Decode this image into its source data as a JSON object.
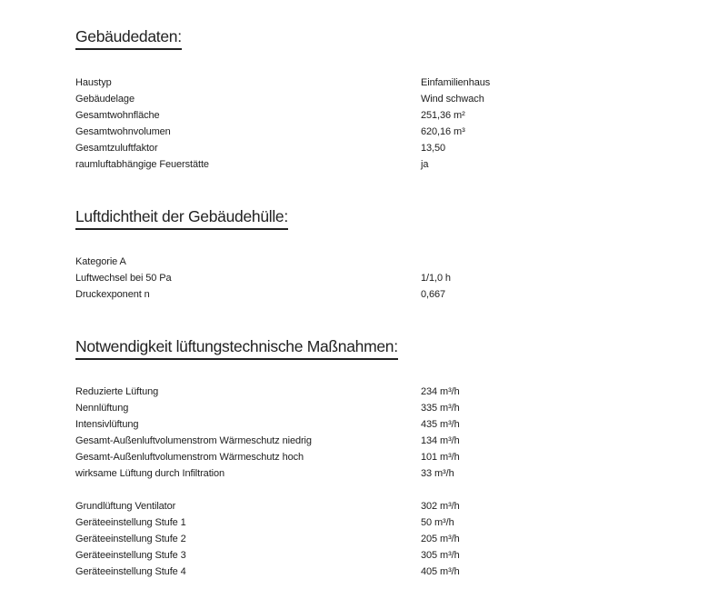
{
  "sections": [
    {
      "title": "Gebäudedaten:",
      "rows": [
        {
          "label": "Haustyp",
          "value": "Einfamilienhaus"
        },
        {
          "label": "Gebäudelage",
          "value": "Wind schwach"
        },
        {
          "label": "Gesamtwohnfläche",
          "value": "251,36 m²"
        },
        {
          "label": "Gesamtwohnvolumen",
          "value": "620,16 m³"
        },
        {
          "label": "Gesamtzuluftfaktor",
          "value": "13,50"
        },
        {
          "label": "raumluftabhängige Feuerstätte",
          "value": "ja"
        }
      ]
    },
    {
      "title": "Luftdichtheit der Gebäudehülle:",
      "rows": [
        {
          "label": "Kategorie A",
          "value": ""
        },
        {
          "label": "Luftwechsel bei 50 Pa",
          "value": "1/1,0 h"
        },
        {
          "label": "Druckexponent n",
          "value": "0,667"
        }
      ]
    },
    {
      "title": "Notwendigkeit lüftungstechnische Maßnahmen:",
      "rows": [
        {
          "label": "Reduzierte Lüftung",
          "value": "234 m³/h"
        },
        {
          "label": "Nennlüftung",
          "value": "335 m³/h"
        },
        {
          "label": "Intensivlüftung",
          "value": "435 m³/h"
        },
        {
          "label": "Gesamt-Außenluftvolumenstrom Wärmeschutz niedrig",
          "value": "134 m³/h"
        },
        {
          "label": "Gesamt-Außenluftvolumenstrom Wärmeschutz hoch",
          "value": "101 m³/h"
        },
        {
          "label": "wirksame Lüftung durch Infiltration",
          "value": "33 m³/h"
        }
      ],
      "rows2": [
        {
          "label": "Grundlüftung Ventilator",
          "value": "302 m³/h"
        },
        {
          "label": "Geräteeinstellung Stufe 1",
          "value": "50 m³/h"
        },
        {
          "label": "Geräteeinstellung Stufe 2",
          "value": "205 m³/h"
        },
        {
          "label": "Geräteeinstellung Stufe 3",
          "value": "305 m³/h"
        },
        {
          "label": "Geräteeinstellung Stufe 4",
          "value": "405 m³/h"
        }
      ]
    }
  ]
}
